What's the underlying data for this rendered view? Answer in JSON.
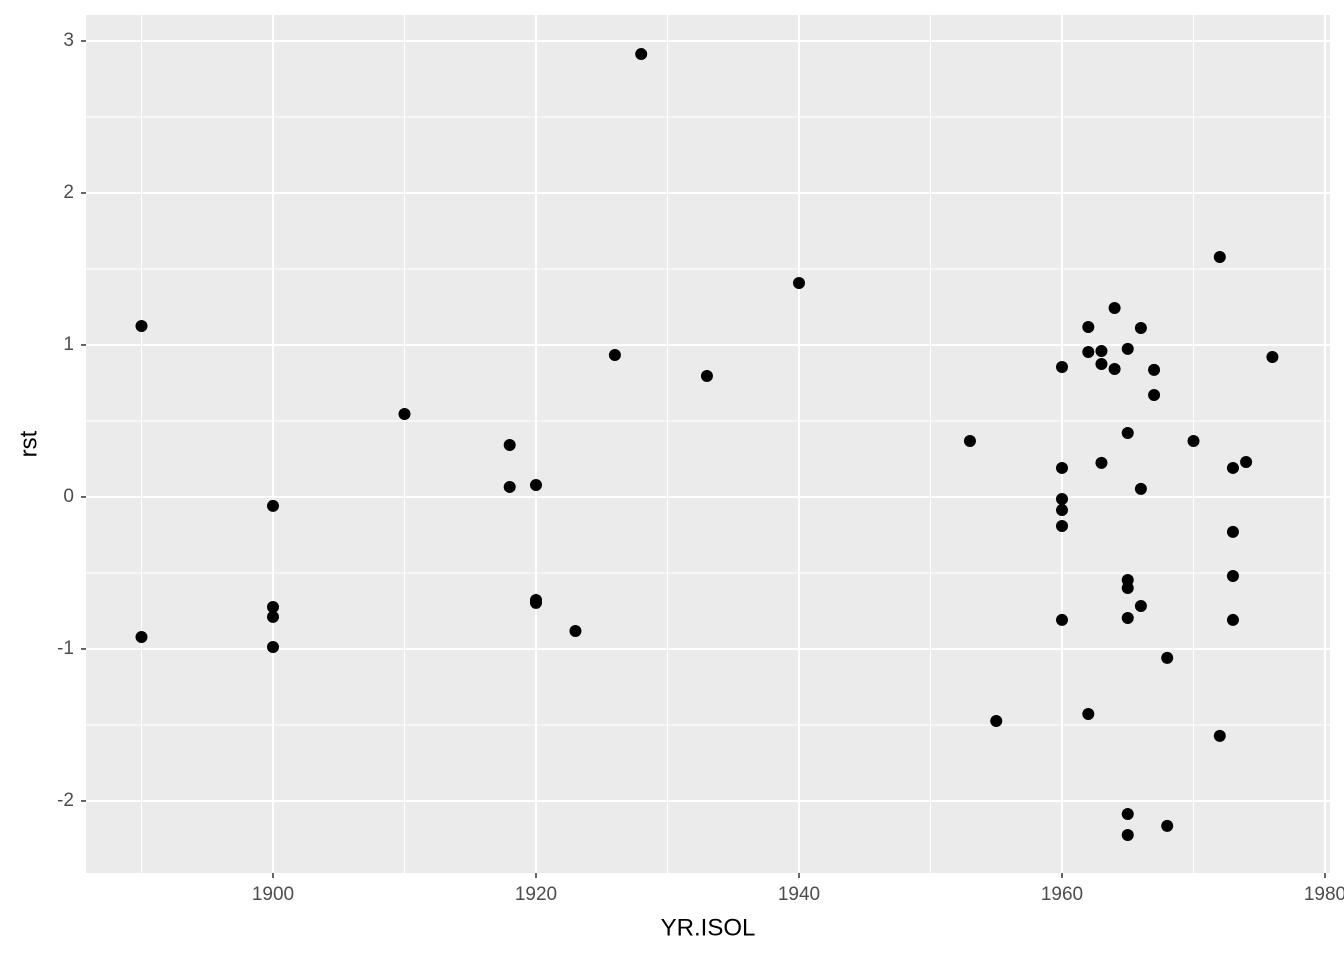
{
  "chart_data": {
    "type": "scatter",
    "x_label": "YR.ISOL",
    "y_label": "rst",
    "xlim": [
      1885.78,
      1980.38
    ],
    "ylim": [
      -2.474,
      3.171
    ],
    "xticks": [
      1900,
      1920,
      1940,
      1960,
      1980
    ],
    "yticks": [
      -2,
      -1,
      0,
      1,
      2,
      3
    ],
    "grid": true,
    "color": "#000000",
    "x": [
      1890,
      1890,
      1900,
      1900,
      1900,
      1900,
      1910,
      1918,
      1918,
      1920,
      1920,
      1920,
      1923,
      1926,
      1928,
      1933,
      1940,
      1953,
      1955,
      1960,
      1960,
      1960,
      1960,
      1960,
      1960,
      1962,
      1962,
      1962,
      1963,
      1963,
      1963,
      1964,
      1964,
      1965,
      1965,
      1965,
      1965,
      1965,
      1965,
      1965,
      1966,
      1966,
      1966,
      1967,
      1967,
      1968,
      1968,
      1970,
      1972,
      1972,
      1973,
      1973,
      1973,
      1973,
      1974,
      1976
    ],
    "values": [
      1.125,
      -0.921,
      -0.059,
      -0.724,
      -0.789,
      -0.987,
      0.546,
      0.342,
      0.066,
      0.079,
      -0.678,
      -0.697,
      -0.882,
      0.934,
      2.914,
      0.796,
      1.408,
      0.368,
      -1.474,
      0.855,
      0.191,
      -0.013,
      -0.086,
      -0.191,
      -0.809,
      1.118,
      0.954,
      -1.428,
      0.96,
      0.875,
      0.224,
      1.243,
      0.842,
      0.974,
      0.421,
      -0.546,
      -0.599,
      -0.796,
      -2.086,
      -2.224,
      1.112,
      0.053,
      -0.717,
      0.836,
      0.671,
      -1.059,
      -2.164,
      0.368,
      1.579,
      -1.572,
      0.191,
      -0.23,
      -0.52,
      -0.809,
      0.23,
      0.921
    ]
  }
}
